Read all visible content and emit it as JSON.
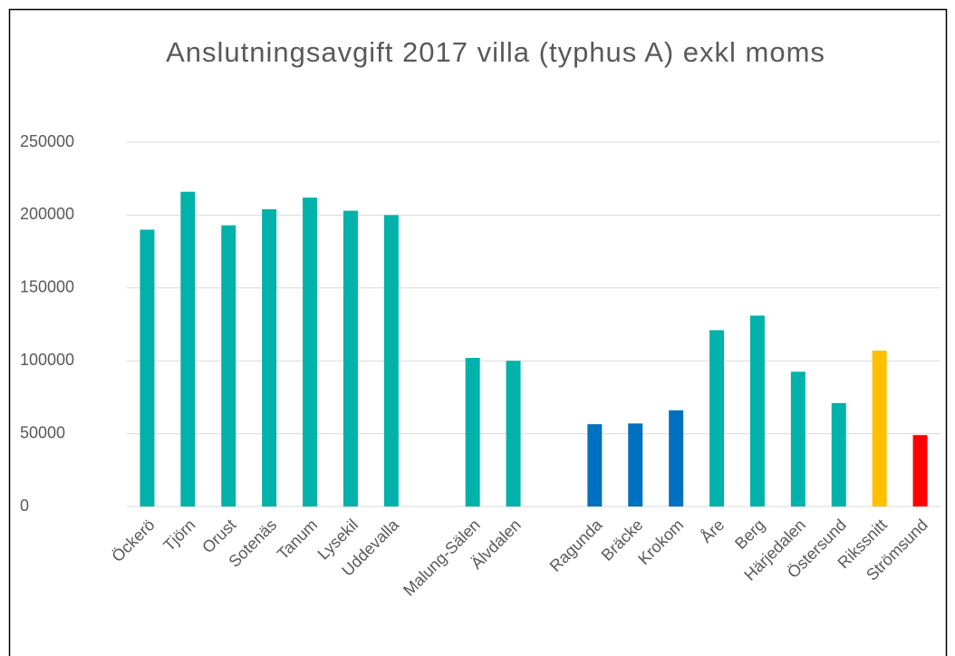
{
  "chart_data": {
    "type": "bar",
    "title": "Anslutningsavgift 2017 villa (typhus A) exkl moms",
    "categories": [
      "Öckerö",
      "Tjörn",
      "Orust",
      "Sotenäs",
      "Tanum",
      "Lysekil",
      "Uddevalla",
      null,
      "Malung-Sälen",
      "Älvdalen",
      null,
      "Ragunda",
      "Bräcke",
      "Krokom",
      "Åre",
      "Berg",
      "Härjedalen",
      "Östersund",
      "Rikssnitt",
      "Strömsund"
    ],
    "values": [
      190000,
      216000,
      193000,
      204000,
      212000,
      203000,
      200000,
      null,
      102000,
      100000,
      null,
      56500,
      57000,
      66000,
      121000,
      131000,
      92500,
      71000,
      107000,
      49000
    ],
    "colors": [
      "#00b2a9",
      "#00b2a9",
      "#00b2a9",
      "#00b2a9",
      "#00b2a9",
      "#00b2a9",
      "#00b2a9",
      null,
      "#00b2a9",
      "#00b2a9",
      null,
      "#0070c0",
      "#0070c0",
      "#0070c0",
      "#00b2a9",
      "#00b2a9",
      "#00b2a9",
      "#00b2a9",
      "#ffc000",
      "#ff0000"
    ],
    "ylim": [
      0,
      250000
    ],
    "yticks": [
      0,
      50000,
      100000,
      150000,
      200000,
      250000
    ],
    "grid": true
  }
}
